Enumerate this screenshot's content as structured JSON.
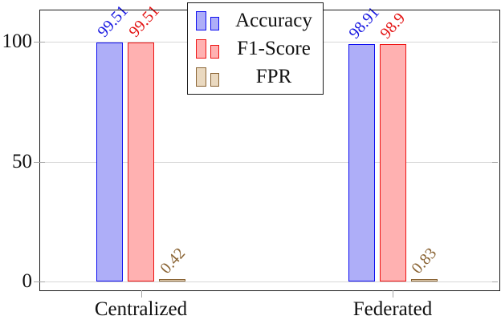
{
  "chart_data": {
    "type": "bar",
    "title": "",
    "xlabel": "",
    "ylabel": "",
    "categories": [
      "Centralized",
      "Federated"
    ],
    "series": [
      {
        "name": "Accuracy",
        "values": [
          99.51,
          98.91
        ],
        "labels": [
          "99.51",
          "98.91"
        ],
        "fill": "#aeaef8",
        "border": "#0d0df0",
        "label_color": "#1616e0"
      },
      {
        "name": "F1-Score",
        "values": [
          99.51,
          98.9
        ],
        "labels": [
          "99.51",
          "98.9"
        ],
        "fill": "#ffb1b1",
        "border": "#ee1313",
        "label_color": "#e31212"
      },
      {
        "name": "FPR",
        "values": [
          0.42,
          0.83
        ],
        "labels": [
          "0.42",
          "0.83"
        ],
        "fill": "#ead9c0",
        "border": "#8a6434",
        "label_color": "#8a6434"
      }
    ],
    "yticks": [
      0,
      50,
      100
    ],
    "ytick_labels": [
      "0",
      "50",
      "100"
    ],
    "ylim": [
      -3.5,
      113
    ],
    "grid": "y-major",
    "legend_position": "north",
    "legend_entries": [
      "Accuracy",
      "F1-Score",
      "FPR"
    ]
  },
  "colors": {
    "axis": "#1a1a1a",
    "grid": "#d8d8d8",
    "tick": "#a6a6a6",
    "text": "#111111"
  }
}
